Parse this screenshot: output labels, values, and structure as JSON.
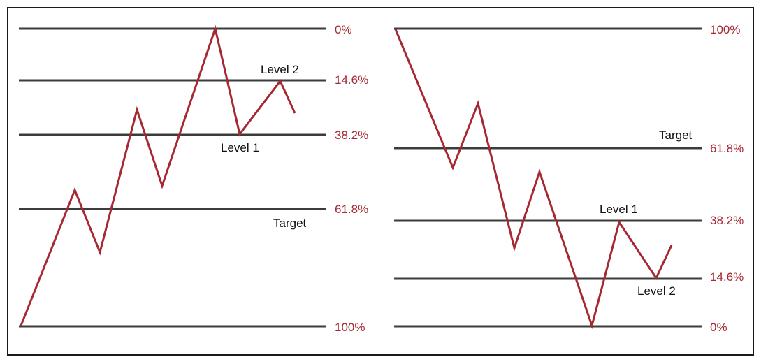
{
  "colors": {
    "accent": "#a52832",
    "line": "#3c3c3c",
    "text": "#111111",
    "border": "#1a1a1a"
  },
  "left_panel": {
    "levels": {
      "l0": "0%",
      "l146": "14.6%",
      "l382": "38.2%",
      "l618": "61.8%",
      "l100": "100%"
    },
    "labels": {
      "level2": "Level 2",
      "level1": "Level 1",
      "target": "Target"
    }
  },
  "right_panel": {
    "levels": {
      "l100": "100%",
      "l618": "61.8%",
      "l382": "38.2%",
      "l146": "14.6%",
      "l0": "0%"
    },
    "labels": {
      "target": "Target",
      "level1": "Level 1",
      "level2": "Level 2"
    }
  }
}
